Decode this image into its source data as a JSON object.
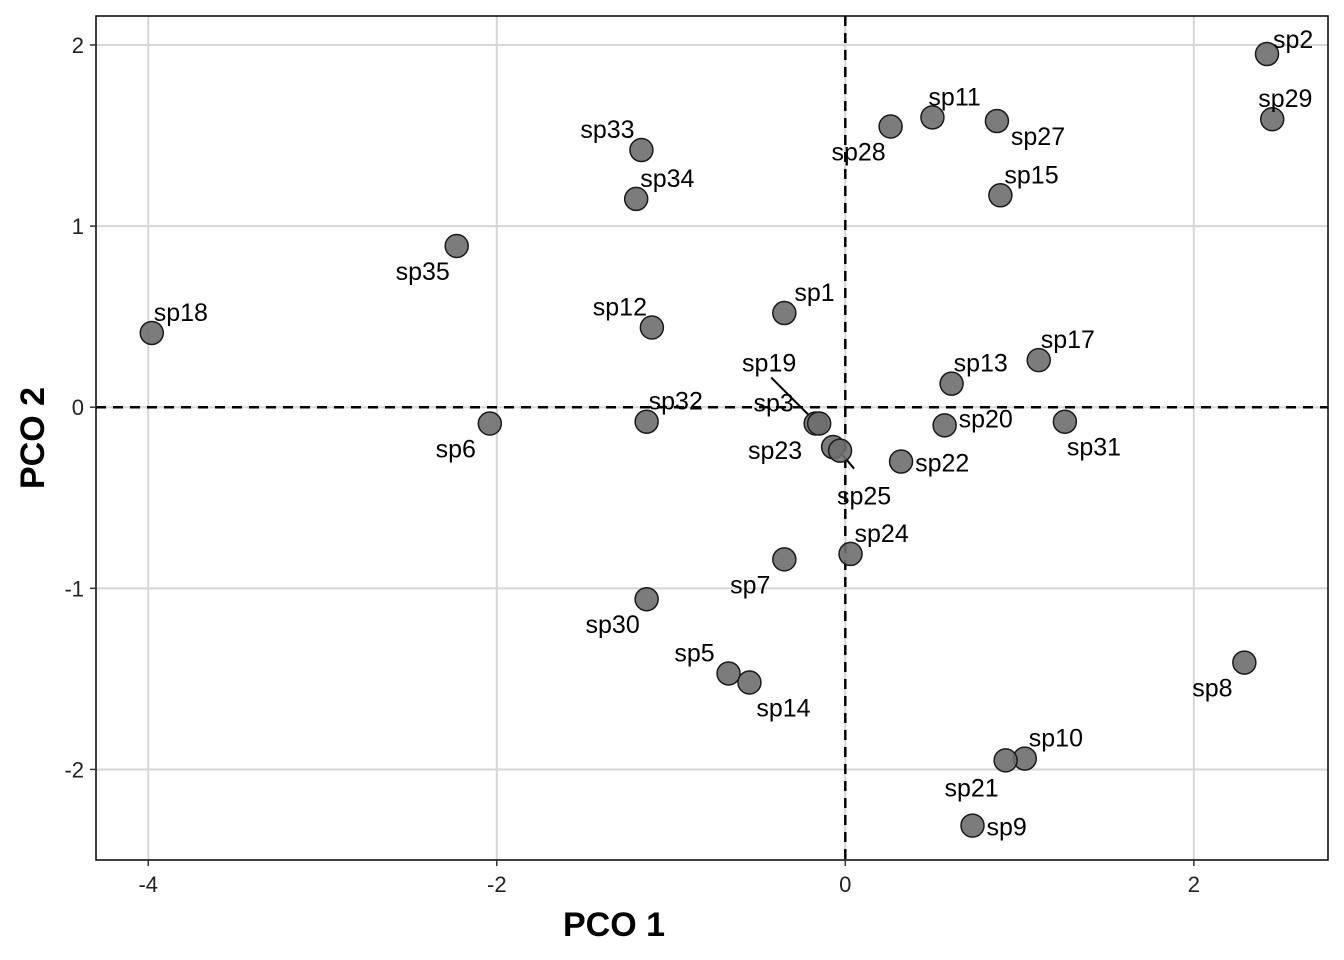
{
  "chart_data": {
    "type": "scatter",
    "title": "",
    "xlabel": "PCO 1",
    "ylabel": "PCO 2",
    "xlim": [
      -4.3,
      2.77
    ],
    "ylim": [
      -2.5,
      2.16
    ],
    "xticks": [
      -4,
      -2,
      0,
      2
    ],
    "yticks": [
      -2,
      -1,
      0,
      1,
      2
    ],
    "xtick_labels": [
      "-4",
      "-2",
      "0",
      "2"
    ],
    "ytick_labels": [
      "-2",
      "-1",
      "0",
      "1",
      "2"
    ],
    "grid": true,
    "reference_lines": {
      "x": 0,
      "y": 0,
      "style": "dashed"
    },
    "point_color": "#6e6e6e",
    "points": [
      {
        "label": "sp1",
        "x": -0.35,
        "y": 0.52
      },
      {
        "label": "sp2",
        "x": 2.42,
        "y": 1.95
      },
      {
        "label": "sp3",
        "x": -0.17,
        "y": -0.09
      },
      {
        "label": "sp5",
        "x": -0.67,
        "y": -1.47
      },
      {
        "label": "sp6",
        "x": -2.04,
        "y": -0.09
      },
      {
        "label": "sp7",
        "x": -0.35,
        "y": -0.84
      },
      {
        "label": "sp8",
        "x": 2.29,
        "y": -1.41
      },
      {
        "label": "sp9",
        "x": 0.73,
        "y": -2.31
      },
      {
        "label": "sp10",
        "x": 1.03,
        "y": -1.94
      },
      {
        "label": "sp11",
        "x": 0.5,
        "y": 1.6
      },
      {
        "label": "sp12",
        "x": -1.11,
        "y": 0.44
      },
      {
        "label": "sp13",
        "x": 0.61,
        "y": 0.13
      },
      {
        "label": "sp14",
        "x": -0.55,
        "y": -1.52
      },
      {
        "label": "sp15",
        "x": 0.89,
        "y": 1.17
      },
      {
        "label": "sp17",
        "x": 1.11,
        "y": 0.26
      },
      {
        "label": "sp18",
        "x": -3.98,
        "y": 0.41
      },
      {
        "label": "sp19",
        "x": -0.15,
        "y": -0.09
      },
      {
        "label": "sp20",
        "x": 0.57,
        "y": -0.1
      },
      {
        "label": "sp21",
        "x": 0.92,
        "y": -1.95
      },
      {
        "label": "sp22",
        "x": 0.32,
        "y": -0.3
      },
      {
        "label": "sp23",
        "x": -0.07,
        "y": -0.22
      },
      {
        "label": "sp24",
        "x": 0.03,
        "y": -0.81
      },
      {
        "label": "sp25",
        "x": -0.03,
        "y": -0.24
      },
      {
        "label": "sp27",
        "x": 0.87,
        "y": 1.58
      },
      {
        "label": "sp28",
        "x": 0.26,
        "y": 1.55
      },
      {
        "label": "sp29",
        "x": 2.45,
        "y": 1.59
      },
      {
        "label": "sp30",
        "x": -1.14,
        "y": -1.06
      },
      {
        "label": "sp31",
        "x": 1.26,
        "y": -0.08
      },
      {
        "label": "sp32",
        "x": -1.14,
        "y": -0.08
      },
      {
        "label": "sp33",
        "x": -1.17,
        "y": 1.42
      },
      {
        "label": "sp34",
        "x": -1.2,
        "y": 1.15
      },
      {
        "label": "sp35",
        "x": -2.23,
        "y": 0.89
      }
    ]
  }
}
